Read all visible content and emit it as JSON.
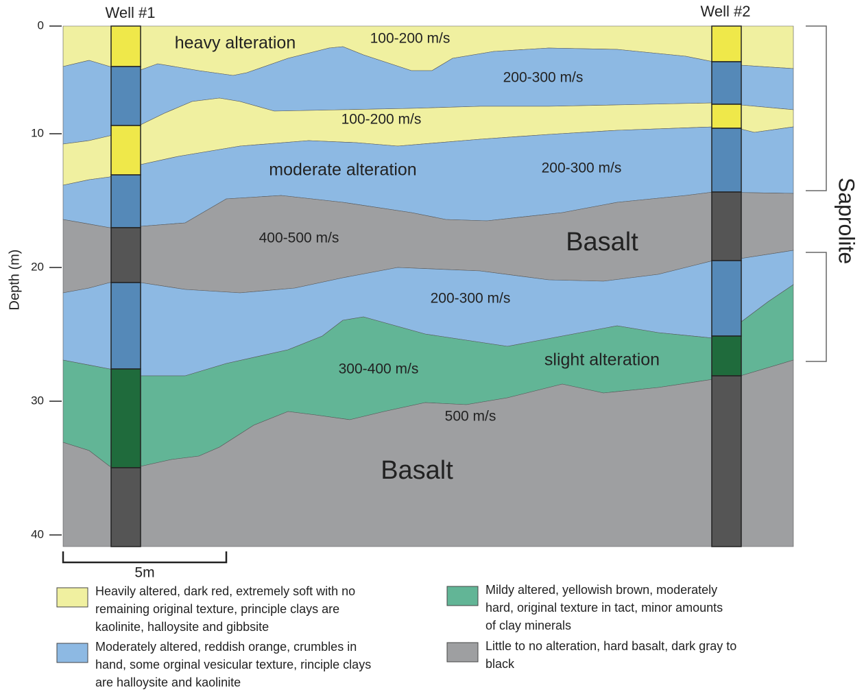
{
  "wells": [
    "Well #1",
    "Well #2"
  ],
  "axis": {
    "label": "Depth (m)",
    "ticks": [
      "0",
      "10",
      "20",
      "30",
      "40"
    ]
  },
  "layer_labels": [
    "heavy alteration",
    "100-200 m/s",
    "200-300 m/s",
    "100-200 m/s",
    "moderate alteration",
    "200-300 m/s",
    "400-500 m/s",
    "Basalt",
    "200-300 m/s",
    "300-400 m/s",
    "slight alteration",
    "500 m/s",
    "Basalt"
  ],
  "scale": "5m",
  "side_label": "Saprolite",
  "legend": [
    {
      "lines": [
        "Heavily altered, dark red, extremely soft with no",
        "remaining original texture, principle clays are",
        "kaolinite, halloysite and gibbsite"
      ]
    },
    {
      "lines": [
        "Moderately altered, reddish orange, crumbles in",
        "hand, some orginal vesicular texture, rinciple clays",
        "are halloysite and kaolinite"
      ]
    },
    {
      "lines": [
        "Mildy altered, yellowish brown, moderately",
        "hard, original texture in tact, minor amounts",
        "of clay minerals"
      ]
    },
    {
      "lines": [
        "Little to no alteration, hard basalt, dark gray to",
        "black"
      ]
    }
  ]
}
